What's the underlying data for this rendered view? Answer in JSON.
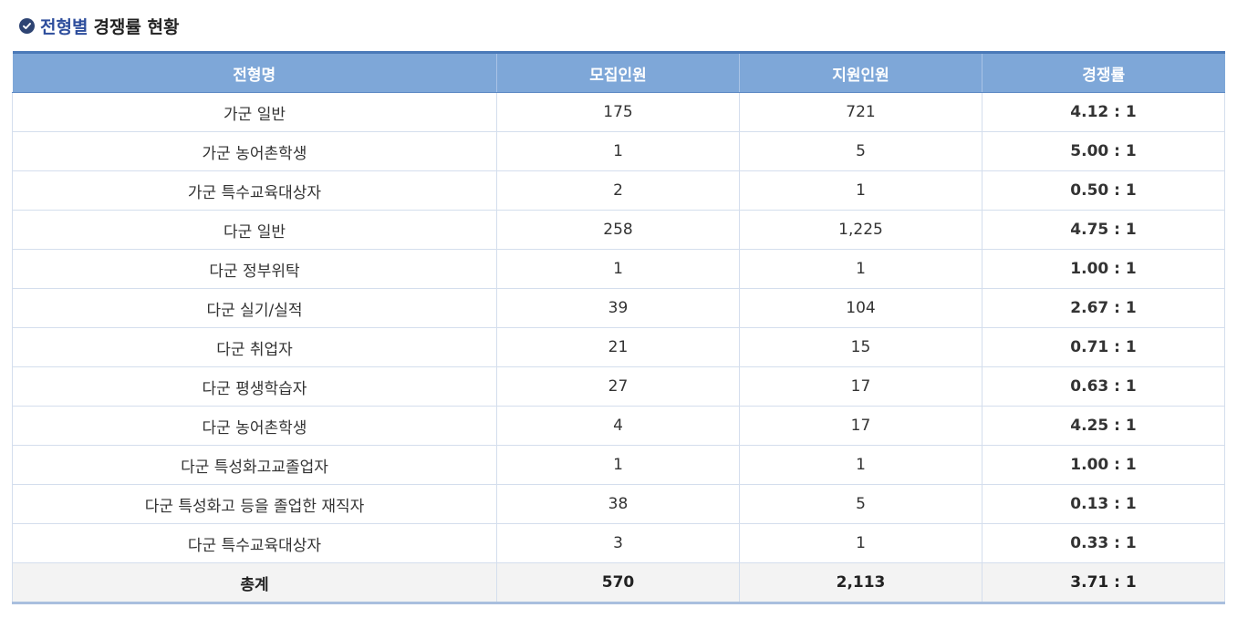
{
  "title": {
    "accent": "전형별",
    "rest": "경쟁률 현황"
  },
  "icons": {
    "title_icon": "check-circle-icon"
  },
  "colors": {
    "header_bg": "#7ea7d8",
    "title_accent": "#2d4d9c",
    "total_row_bg": "#f3f3f3"
  },
  "table": {
    "headers": [
      "전형명",
      "모집인원",
      "지원인원",
      "경쟁률"
    ],
    "rows": [
      {
        "name": "가군 일반",
        "quota": "175",
        "applicants": "721",
        "ratio": "4.12 : 1"
      },
      {
        "name": "가군 농어촌학생",
        "quota": "1",
        "applicants": "5",
        "ratio": "5.00 : 1"
      },
      {
        "name": "가군 특수교육대상자",
        "quota": "2",
        "applicants": "1",
        "ratio": "0.50 : 1"
      },
      {
        "name": "다군 일반",
        "quota": "258",
        "applicants": "1,225",
        "ratio": "4.75 : 1"
      },
      {
        "name": "다군 정부위탁",
        "quota": "1",
        "applicants": "1",
        "ratio": "1.00 : 1"
      },
      {
        "name": "다군 실기/실적",
        "quota": "39",
        "applicants": "104",
        "ratio": "2.67 : 1"
      },
      {
        "name": "다군 취업자",
        "quota": "21",
        "applicants": "15",
        "ratio": "0.71 : 1"
      },
      {
        "name": "다군 평생학습자",
        "quota": "27",
        "applicants": "17",
        "ratio": "0.63 : 1"
      },
      {
        "name": "다군 농어촌학생",
        "quota": "4",
        "applicants": "17",
        "ratio": "4.25 : 1"
      },
      {
        "name": "다군 특성화고교졸업자",
        "quota": "1",
        "applicants": "1",
        "ratio": "1.00 : 1"
      },
      {
        "name": "다군 특성화고 등을 졸업한 재직자",
        "quota": "38",
        "applicants": "5",
        "ratio": "0.13 : 1"
      },
      {
        "name": "다군 특수교육대상자",
        "quota": "3",
        "applicants": "1",
        "ratio": "0.33 : 1"
      }
    ],
    "total": {
      "name": "총계",
      "quota": "570",
      "applicants": "2,113",
      "ratio": "3.71 : 1"
    }
  }
}
